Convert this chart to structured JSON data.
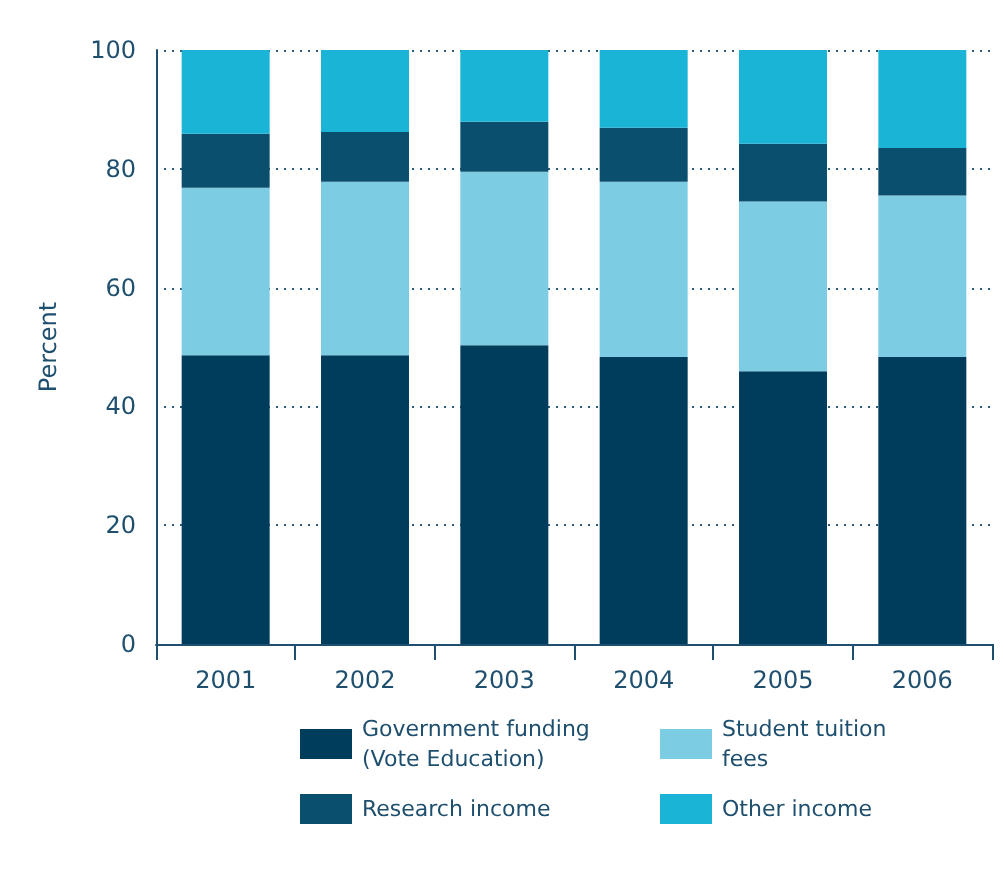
{
  "chart_data": {
    "type": "bar",
    "stacked": true,
    "ylabel": "Percent",
    "categories": [
      "2001",
      "2002",
      "2003",
      "2004",
      "2005",
      "2006"
    ],
    "series": [
      {
        "name": "Government funding (Vote Education)",
        "color": "#003d5c",
        "values": [
          48.6,
          48.6,
          50.3,
          48.3,
          45.9,
          48.3
        ]
      },
      {
        "name": "Student tuition fees",
        "color": "#7ccde3",
        "values": [
          28.2,
          29.2,
          29.2,
          29.5,
          28.6,
          27.2
        ]
      },
      {
        "name": "Research income",
        "color": "#0b4f6e",
        "values": [
          9.1,
          8.4,
          8.4,
          9.1,
          9.7,
          8.0
        ]
      },
      {
        "name": "Other income",
        "color": "#1ab4d6",
        "values": [
          14.1,
          13.8,
          12.1,
          13.1,
          15.8,
          16.5
        ]
      }
    ],
    "ylim": [
      0,
      100
    ],
    "yticks": [
      0,
      20,
      40,
      60,
      80,
      100
    ],
    "grid": "y",
    "legend": "bottom"
  }
}
